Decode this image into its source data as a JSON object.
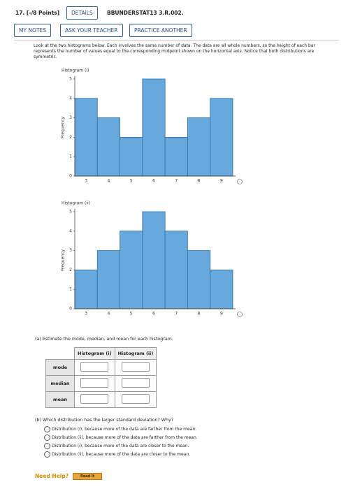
{
  "header": {
    "number": "17. [-/8 Points]",
    "details": "DETAILS",
    "code": "BBUNDERSTAT13 3.R.002.",
    "my_notes": "MY NOTES",
    "ask_teacher": "ASK YOUR TEACHER",
    "practice": "PRACTICE ANOTHER"
  },
  "intro": "Look at the two histograms below. Each involves the same number of data. The data are all whole numbers, so the height of each bar represents the number of values equal to the corresponding midpoint shown on the horizontal axis. Notice that both distributions are symmetric.",
  "chart_data": [
    {
      "type": "bar",
      "title": "Histogram (i)",
      "y_label": "Frequency",
      "categories": [
        "3",
        "4",
        "5",
        "6",
        "7",
        "8",
        "9"
      ],
      "values": [
        4,
        3,
        2,
        5,
        2,
        3,
        4
      ],
      "color": "#67a9dc",
      "ylim": [
        0,
        5
      ],
      "yticks": [
        0,
        1,
        2,
        3,
        4,
        5
      ]
    },
    {
      "type": "bar",
      "title": "Histogram (ii)",
      "y_label": "Frequency",
      "categories": [
        "3",
        "4",
        "5",
        "6",
        "7",
        "8",
        "9"
      ],
      "values": [
        2,
        3,
        4,
        5,
        4,
        3,
        2
      ],
      "color": "#67a9dc",
      "ylim": [
        0,
        5
      ],
      "yticks": [
        0,
        1,
        2,
        3,
        4,
        5
      ]
    }
  ],
  "part_a": {
    "prompt": "(a) Estimate the mode, median, and mean for each histogram.",
    "columns": [
      "Histogram (i)",
      "Histogram (ii)"
    ],
    "rows": [
      "mode",
      "median",
      "mean"
    ]
  },
  "part_b": {
    "prompt": "(b) Which distribution has the larger standard deviation? Why?",
    "options": [
      "Distribution (i), because more of the data are farther from the mean.",
      "Distribution (ii), because more of the data are farther from the mean.",
      "Distribution (i), because more of the data are closer to the mean.",
      "Distribution (ii), because more of the data are closer to the mean."
    ]
  },
  "help": {
    "label": "Need Help?",
    "button": "Read It"
  }
}
